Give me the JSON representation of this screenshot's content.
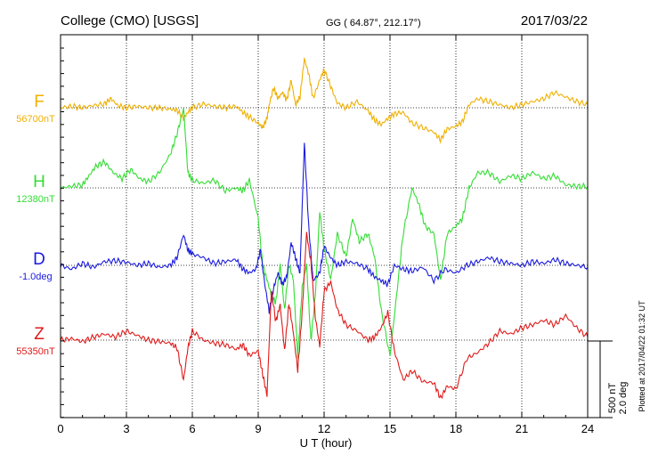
{
  "header": {
    "station": "College (CMO)  [USGS]",
    "coords": "GG ( 64.87°, 212.17°)",
    "date": "2017/03/22"
  },
  "scale": {
    "nt": "500 nT",
    "deg": "2.0 deg"
  },
  "plotted_note": "Plotted at 2017/04/22 01:32 UT",
  "chart_data": {
    "type": "line",
    "xlabel": "U T (hour)",
    "xlim": [
      0,
      24
    ],
    "xticks": [
      0,
      3,
      6,
      9,
      12,
      15,
      18,
      21,
      24
    ],
    "grid": true,
    "series": [
      {
        "name": "F",
        "baseline_label": "56700nT",
        "color": "#f0b000",
        "x": [
          0,
          0.5,
          1,
          1.5,
          2,
          2.3,
          2.6,
          3,
          3.5,
          4,
          4.5,
          5,
          5.3,
          5.6,
          5.8,
          6,
          6.5,
          7,
          7.5,
          8,
          8.3,
          8.6,
          9,
          9.2,
          9.4,
          9.5,
          9.7,
          9.9,
          10.1,
          10.3,
          10.5,
          10.7,
          10.9,
          11.1,
          11.3,
          11.5,
          11.8,
          12,
          12.3,
          12.6,
          13,
          13.5,
          14,
          14.3,
          14.6,
          14.9,
          15.2,
          15.6,
          16,
          16.5,
          17,
          17.3,
          17.6,
          18,
          18.3,
          18.6,
          19,
          19.5,
          20,
          20.5,
          21,
          21.5,
          22,
          22.5,
          23,
          23.5,
          24
        ],
        "y": [
          0,
          10,
          0,
          15,
          25,
          60,
          15,
          0,
          10,
          0,
          0,
          -10,
          -15,
          -70,
          -30,
          0,
          25,
          10,
          0,
          10,
          -30,
          -60,
          -100,
          -130,
          -70,
          20,
          130,
          60,
          100,
          50,
          180,
          20,
          70,
          320,
          220,
          60,
          180,
          250,
          140,
          30,
          0,
          40,
          -20,
          -80,
          -110,
          -70,
          -40,
          -30,
          -100,
          -130,
          -160,
          -210,
          -140,
          -120,
          -90,
          20,
          60,
          40,
          20,
          0,
          20,
          40,
          60,
          100,
          70,
          40,
          20
        ]
      },
      {
        "name": "H",
        "baseline_label": "12380nT",
        "color": "#33dd33",
        "x": [
          0,
          0.5,
          1,
          1.3,
          1.6,
          2,
          2.4,
          2.8,
          3.2,
          3.6,
          4,
          4.5,
          5,
          5.3,
          5.6,
          5.8,
          6,
          6.5,
          7,
          7.5,
          8,
          8.3,
          8.6,
          9,
          9.2,
          9.4,
          9.6,
          9.8,
          10,
          10.2,
          10.4,
          10.6,
          10.8,
          11,
          11.2,
          11.4,
          11.6,
          11.8,
          12,
          12.3,
          12.6,
          13,
          13.3,
          13.6,
          14,
          14.3,
          14.6,
          15,
          15.3,
          15.6,
          16,
          16.3,
          16.6,
          17,
          17.3,
          17.6,
          18,
          18.3,
          18.6,
          19,
          19.5,
          20,
          20.5,
          21,
          21.5,
          22,
          22.5,
          23,
          23.5,
          24
        ],
        "y": [
          0,
          10,
          20,
          80,
          140,
          170,
          100,
          60,
          120,
          60,
          40,
          100,
          220,
          350,
          520,
          100,
          50,
          30,
          50,
          -20,
          0,
          -20,
          50,
          -200,
          -500,
          -600,
          -700,
          -750,
          -500,
          -800,
          -500,
          -600,
          -1100,
          -650,
          -500,
          -1000,
          -700,
          -150,
          -400,
          -600,
          -300,
          -450,
          -200,
          -350,
          -300,
          -450,
          -800,
          -1100,
          -700,
          -300,
          0,
          -100,
          -250,
          -300,
          -600,
          -300,
          -250,
          -200,
          0,
          100,
          100,
          40,
          80,
          60,
          100,
          60,
          80,
          20,
          10,
          10
        ]
      },
      {
        "name": "D",
        "baseline_label": "-1.0deg",
        "color": "#1a1adf",
        "x": [
          0,
          0.5,
          1,
          1.5,
          2,
          2.5,
          3,
          3.5,
          4,
          4.5,
          5,
          5.3,
          5.6,
          5.8,
          6,
          6.5,
          7,
          7.5,
          8,
          8.3,
          8.6,
          8.9,
          9.1,
          9.3,
          9.5,
          9.7,
          9.9,
          10.1,
          10.3,
          10.5,
          10.7,
          10.9,
          11.1,
          11.3,
          11.5,
          11.8,
          12,
          12.3,
          12.6,
          13,
          13.5,
          14,
          14.3,
          14.6,
          14.9,
          15.2,
          15.6,
          16,
          16.5,
          17,
          17.5,
          18,
          18.5,
          19,
          19.5,
          20,
          20.5,
          21,
          21.5,
          22,
          22.5,
          23,
          23.5,
          24
        ],
        "y": [
          0,
          -0.1,
          0.05,
          -0.05,
          0.1,
          0.12,
          0.08,
          0,
          0.05,
          -0.05,
          0,
          0.2,
          0.8,
          0.4,
          0.3,
          0.2,
          0.05,
          0.1,
          0.15,
          -0.1,
          -0.2,
          -0.1,
          0.4,
          -0.5,
          -1.2,
          -0.6,
          -0.2,
          -0.5,
          -0.3,
          0.6,
          0.2,
          -0.2,
          3.2,
          1.0,
          -0.4,
          -0.2,
          0.5,
          0.2,
          0,
          0.1,
          0.05,
          -0.1,
          -0.3,
          -0.4,
          -0.5,
          0,
          -0.1,
          -0.15,
          -0.05,
          -0.4,
          -0.1,
          -0.2,
          0,
          0.1,
          0.2,
          0.1,
          0.05,
          0,
          0.1,
          0.05,
          0.15,
          0.05,
          0,
          -0.05
        ]
      },
      {
        "name": "Z",
        "baseline_label": "55350nT",
        "color": "#e01a1a",
        "x": [
          0,
          0.5,
          1,
          1.5,
          2,
          2.5,
          3,
          3.5,
          4,
          4.5,
          5,
          5.3,
          5.6,
          5.8,
          6,
          6.5,
          7,
          7.5,
          8,
          8.3,
          8.6,
          9,
          9.2,
          9.4,
          9.6,
          9.8,
          10,
          10.2,
          10.4,
          10.6,
          10.8,
          11,
          11.2,
          11.4,
          11.6,
          11.8,
          12,
          12.3,
          12.6,
          13,
          13.5,
          14,
          14.3,
          14.6,
          14.9,
          15.2,
          15.6,
          16,
          16.5,
          17,
          17.3,
          17.6,
          18,
          18.5,
          19,
          19.5,
          20,
          20.5,
          21,
          21.5,
          22,
          22.5,
          23,
          23.5,
          24
        ],
        "y": [
          0,
          10,
          -10,
          20,
          40,
          20,
          60,
          30,
          0,
          -10,
          -20,
          -50,
          -260,
          -50,
          60,
          0,
          -20,
          -30,
          -60,
          -30,
          -100,
          -70,
          -220,
          -360,
          330,
          120,
          230,
          -70,
          240,
          50,
          -200,
          180,
          700,
          510,
          150,
          -40,
          320,
          380,
          200,
          100,
          60,
          0,
          20,
          80,
          180,
          -70,
          -260,
          -200,
          -270,
          -280,
          -380,
          -300,
          -320,
          -120,
          -80,
          -20,
          60,
          40,
          80,
          100,
          130,
          100,
          160,
          80,
          20
        ]
      }
    ]
  }
}
